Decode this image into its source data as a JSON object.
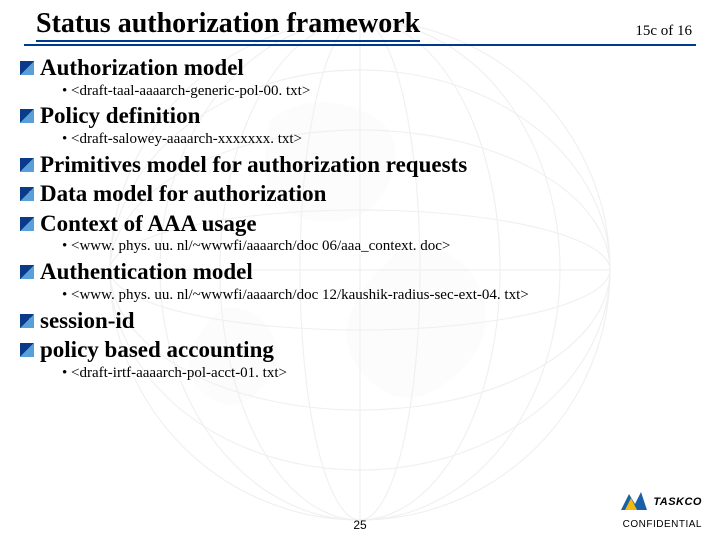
{
  "title": "Status authorization framework",
  "page_counter": "15c of 16",
  "slide_number": "25",
  "confidential": "CONFIDENTIAL",
  "logo_text": "TASKCO",
  "colors": {
    "underline": "#003a8c",
    "bullet_dark": "#0a3a8a",
    "bullet_light": "#5aa0d8",
    "logo_blue": "#1a5fa8",
    "logo_yellow": "#f2b90f",
    "globe_line": "#7a7a7a"
  },
  "items": [
    {
      "text": "Authorization model",
      "subs": [
        "<draft-taal-aaaarch-generic-pol-00. txt>"
      ]
    },
    {
      "text": "Policy definition",
      "subs": [
        "<draft-salowey-aaaarch-xxxxxxx. txt>"
      ]
    },
    {
      "text": "Primitives model for authorization requests",
      "subs": []
    },
    {
      "text": "Data model for authorization",
      "subs": []
    },
    {
      "text": "Context of AAA usage",
      "subs": [
        "<www. phys. uu. nl/~wwwfi/aaaarch/doc 06/aaa_context. doc>"
      ]
    },
    {
      "text": "Authentication model",
      "subs": [
        "<www. phys. uu. nl/~wwwfi/aaaarch/doc 12/kaushik-radius-sec-ext-04. txt>"
      ]
    },
    {
      "text": "session-id",
      "subs": []
    },
    {
      "text": "policy based accounting",
      "subs": [
        "<draft-irtf-aaaarch-pol-acct-01. txt>"
      ]
    }
  ]
}
